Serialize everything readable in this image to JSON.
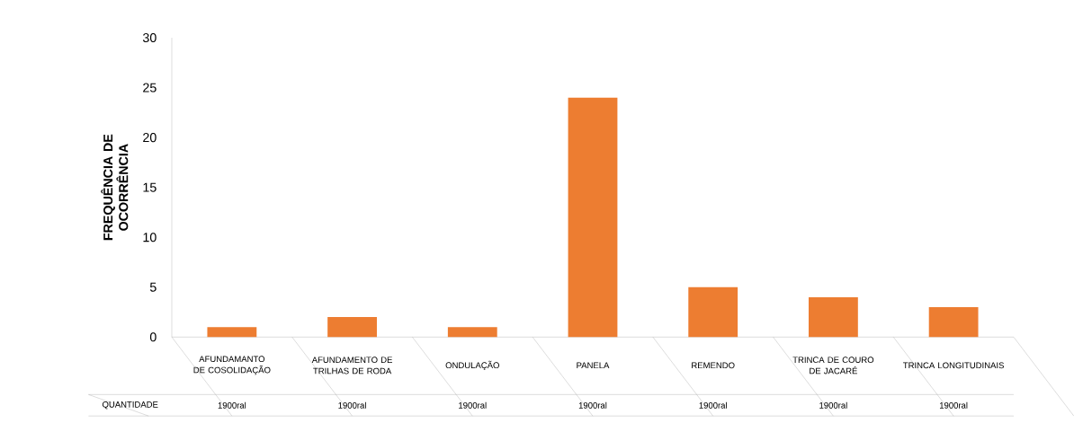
{
  "chart_data": {
    "type": "bar",
    "ylabel": "FREQUÊNCIA DE OCORRÊNCIA",
    "categories": [
      "AFUNDAMANTO DE COSOLIDAÇÃO",
      "AFUNDAMENTO DE TRILHAS DE RODA",
      "ONDULAÇÃO",
      "PANELA",
      "REMENDO",
      "TRINCA DE COURO DE JACARÉ",
      "TRINCA LONGITUDINAIS"
    ],
    "series": [
      {
        "name": "QUANTIDADE",
        "color": "#ed7d31",
        "values": [
          1,
          2,
          1,
          24,
          5,
          4,
          3
        ]
      }
    ],
    "annotations": [
      "1900ral",
      "1900ral",
      "1900ral",
      "1900ral",
      "1900ral",
      "1900ral",
      "1900ral"
    ],
    "ylim": [
      0,
      30
    ],
    "yticks": [
      0,
      5,
      10,
      15,
      20,
      25,
      30
    ]
  }
}
